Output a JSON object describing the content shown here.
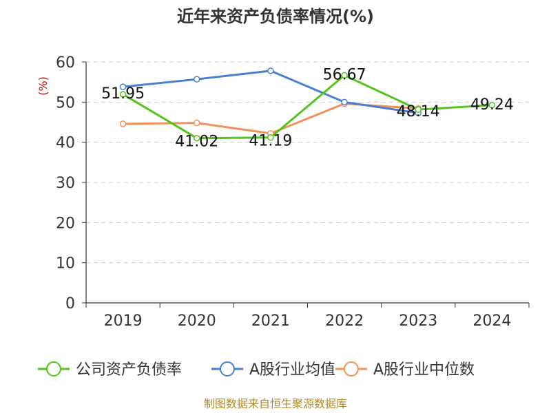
{
  "chart_data": {
    "type": "line",
    "title": "近年来资产负债率情况(%)",
    "ylabel": "(%)",
    "xlabel": "",
    "categories": [
      "2019",
      "2020",
      "2021",
      "2022",
      "2023",
      "2024"
    ],
    "ylim": [
      0,
      60
    ],
    "yticks": [
      "0",
      "10",
      "20",
      "30",
      "40",
      "50",
      "60"
    ],
    "grid": true,
    "legend_position": "bottom",
    "series": [
      {
        "name": "公司资产负债率",
        "color": "#52c41a",
        "values": [
          51.95,
          41.02,
          41.19,
          56.67,
          48.14,
          49.24
        ],
        "labels": [
          "51.95",
          "41.02",
          "41.19",
          "56.67",
          "48.14",
          "49.24"
        ]
      },
      {
        "name": "A股行业均值",
        "color": "#4a7fd6",
        "values": [
          53.8,
          55.7,
          57.8,
          50.0,
          47.3,
          null
        ]
      },
      {
        "name": "A股行业中位数",
        "color": "#f0915a",
        "values": [
          44.6,
          44.8,
          42.2,
          49.6,
          48.4,
          null
        ]
      }
    ]
  },
  "footer": {
    "source": "制图数据来自恒生聚源数据库"
  }
}
